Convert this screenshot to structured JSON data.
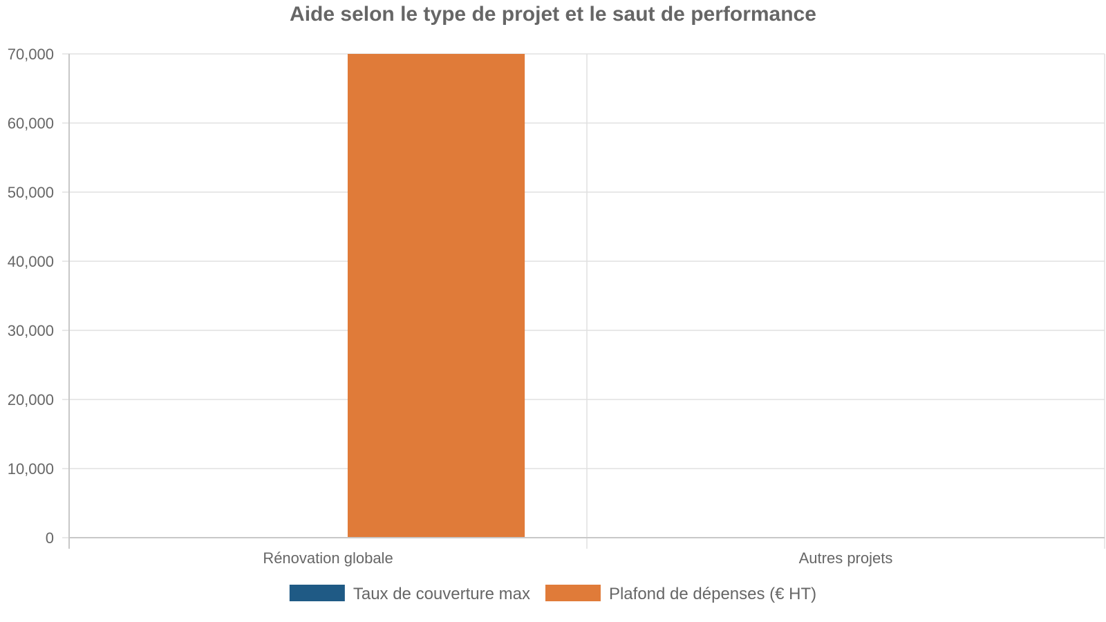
{
  "chart_data": {
    "type": "bar",
    "title": "Aide selon le type de projet et le saut de performance",
    "categories": [
      "Rénovation globale",
      "Autres projets"
    ],
    "series": [
      {
        "name": "Taux de couverture max",
        "color": "#1f5a85",
        "values": [
          80,
          0
        ]
      },
      {
        "name": "Plafond de dépenses (€ HT)",
        "color": "#e07b39",
        "values": [
          70000,
          0
        ]
      }
    ],
    "ylim": [
      0,
      70000
    ],
    "yticks": [
      0,
      10000,
      20000,
      30000,
      40000,
      50000,
      60000,
      70000
    ],
    "grid": true,
    "legend_position": "bottom",
    "xlabel": "",
    "ylabel": ""
  }
}
